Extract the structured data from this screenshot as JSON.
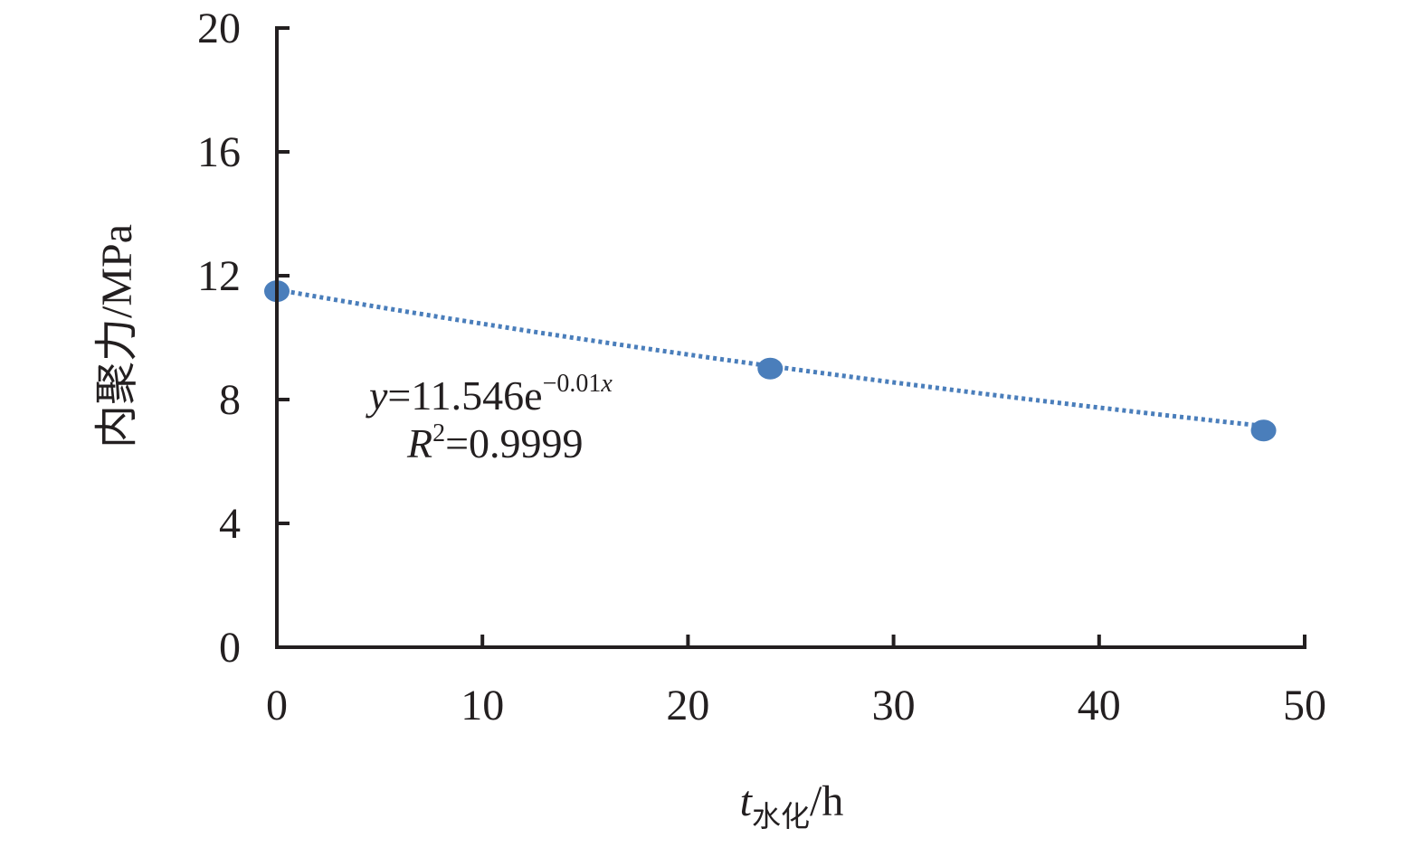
{
  "chart_data": {
    "type": "scatter",
    "xlabel": {
      "var": "t",
      "subscript": "水化",
      "unit": "/h"
    },
    "ylabel": "内聚力/MPa",
    "xlim": [
      0,
      50
    ],
    "ylim": [
      0,
      20
    ],
    "x_ticks": [
      0,
      10,
      20,
      30,
      40,
      50
    ],
    "y_ticks": [
      0,
      4,
      8,
      12,
      16,
      20
    ],
    "x_tick_labels": [
      "0",
      "10",
      "20",
      "30",
      "40",
      "50"
    ],
    "y_tick_labels": [
      "0",
      "4",
      "8",
      "12",
      "16",
      "20"
    ],
    "grid": false,
    "series": [
      {
        "x": [
          0,
          24,
          48
        ],
        "y": [
          11.5,
          9.0,
          7.0
        ],
        "color": "#4a7ebb"
      }
    ],
    "trendline": {
      "kind": "exponential",
      "a": 11.546,
      "b": -0.01,
      "style": "dotted",
      "color": "#4a7ebb",
      "x_range": [
        0,
        48
      ]
    },
    "annotation": {
      "equation": {
        "lhs": "y",
        "rhs": "=11.546e",
        "exponent": "−0.01",
        "exponent_var": "x"
      },
      "r2": {
        "var": "R",
        "power": "2",
        "value": "=0.9999"
      }
    },
    "colors": {
      "axis": "#231f20",
      "series": "#4a7ebb"
    }
  }
}
